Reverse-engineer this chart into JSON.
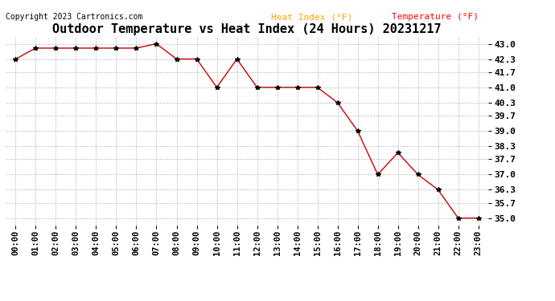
{
  "title": "Outdoor Temperature vs Heat Index (24 Hours) 20231217",
  "copyright_text": "Copyright 2023 Cartronics.com",
  "legend_heat_index": "Heat Index (°F)",
  "legend_temperature": "Temperature (°F)",
  "x_labels": [
    "00:00",
    "01:00",
    "02:00",
    "03:00",
    "04:00",
    "05:00",
    "06:00",
    "07:00",
    "08:00",
    "09:00",
    "10:00",
    "11:00",
    "12:00",
    "13:00",
    "14:00",
    "15:00",
    "16:00",
    "17:00",
    "18:00",
    "19:00",
    "20:00",
    "21:00",
    "22:00",
    "23:00"
  ],
  "temperature_values": [
    42.3,
    42.8,
    42.8,
    42.8,
    42.8,
    42.8,
    42.8,
    43.0,
    42.3,
    42.3,
    41.0,
    42.3,
    41.0,
    41.0,
    41.0,
    41.0,
    40.3,
    39.0,
    37.0,
    38.0,
    37.0,
    36.3,
    35.0,
    35.0
  ],
  "ylim_min": 34.65,
  "ylim_max": 43.35,
  "y_ticks": [
    35.0,
    35.7,
    36.3,
    37.0,
    37.7,
    38.3,
    39.0,
    39.7,
    40.3,
    41.0,
    41.7,
    42.3,
    43.0
  ],
  "line_color": "#cc0000",
  "marker_color": "#000000",
  "background_color": "#ffffff",
  "grid_color": "#bbbbbb",
  "title_fontsize": 11,
  "copyright_fontsize": 7,
  "legend_fontsize": 8,
  "tick_fontsize": 7.5,
  "ytick_fontsize": 8
}
